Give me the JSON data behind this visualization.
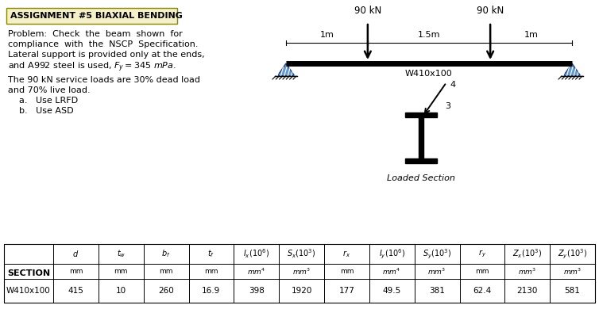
{
  "title": "ASSIGNMENT #5 BIAXIAL BENDING",
  "title_bg": "#f5f0c8",
  "problem_lines": [
    "Problem:  Check  the  beam  shown  for",
    "compliance  with  the  NSCP  Specification.",
    "Lateral support is provided only at the ends,",
    "and A992 steel is used, $F_y = 345\\ mPa$."
  ],
  "load_lines": [
    "The 90 kN service loads are 30% dead load",
    "and 70% live load.",
    "    a.   Use LRFD",
    "    b.   Use ASD"
  ],
  "beam_load1": "90 kN",
  "beam_load2": "90 kN",
  "beam_dim1": "1m",
  "beam_dim2": "1.5m",
  "beam_dim3": "1m",
  "beam_label": "W410x100",
  "loaded_section_label": "Loaded Section",
  "table_section_label": "SECTION",
  "table_row_label": "W410x100",
  "table_values": [
    "415",
    "10",
    "260",
    "16.9",
    "398",
    "1920",
    "177",
    "49.5",
    "381",
    "62.4",
    "2130",
    "581"
  ],
  "bg_color": "#ffffff",
  "support_color": "#6699cc"
}
